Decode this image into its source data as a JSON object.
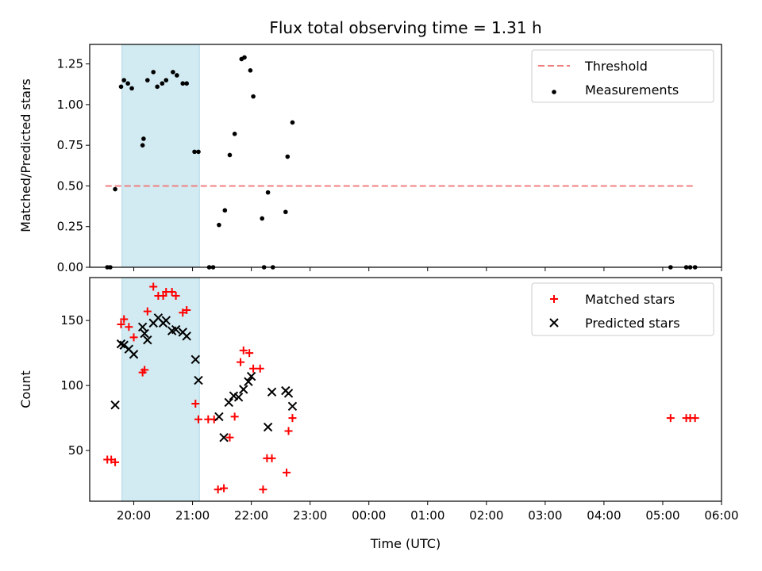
{
  "chart_data": [
    {
      "type": "scatter",
      "title": "Flux total observing time = 1.31 h",
      "ylabel": "Matched/Predicted stars",
      "xlabel": "",
      "xlim": [
        "19:15",
        "06:00"
      ],
      "ylim": [
        0,
        1.37
      ],
      "yticks": [
        "0.00",
        "0.25",
        "0.50",
        "0.75",
        "1.00",
        "1.25"
      ],
      "shaded_region": {
        "x_start": "19:48",
        "x_end": "21:07",
        "color": "#add8e6"
      },
      "legend_position": "upper right",
      "threshold": {
        "name": "Threshold",
        "y": 0.5,
        "x_start": "19:31",
        "x_end": "05:33",
        "color": "#f08080",
        "style": "dashed"
      },
      "series": [
        {
          "name": "Measurements",
          "color": "#000000",
          "marker": "dot",
          "points": [
            [
              "19:33",
              0.0
            ],
            [
              "19:36",
              0.0
            ],
            [
              "19:41",
              0.48
            ],
            [
              "19:47",
              1.11
            ],
            [
              "19:50",
              1.15
            ],
            [
              "19:54",
              1.13
            ],
            [
              "19:58",
              1.1
            ],
            [
              "20:09",
              0.75
            ],
            [
              "20:10",
              0.79
            ],
            [
              "20:14",
              1.15
            ],
            [
              "20:20",
              1.2
            ],
            [
              "20:24",
              1.11
            ],
            [
              "20:29",
              1.13
            ],
            [
              "20:33",
              1.15
            ],
            [
              "20:40",
              1.2
            ],
            [
              "20:44",
              1.18
            ],
            [
              "20:50",
              1.13
            ],
            [
              "20:54",
              1.13
            ],
            [
              "21:02",
              0.71
            ],
            [
              "21:06",
              0.71
            ],
            [
              "21:17",
              0.0
            ],
            [
              "21:21",
              0.0
            ],
            [
              "21:27",
              0.26
            ],
            [
              "21:33",
              0.35
            ],
            [
              "21:38",
              0.69
            ],
            [
              "21:43",
              0.82
            ],
            [
              "21:50",
              1.28
            ],
            [
              "21:53",
              1.29
            ],
            [
              "21:59",
              1.21
            ],
            [
              "22:02",
              1.05
            ],
            [
              "22:11",
              0.3
            ],
            [
              "22:13",
              0.0
            ],
            [
              "22:17",
              0.46
            ],
            [
              "22:22",
              0.0
            ],
            [
              "22:35",
              0.34
            ],
            [
              "22:37",
              0.68
            ],
            [
              "22:42",
              0.89
            ],
            [
              "05:08",
              0.0
            ],
            [
              "05:24",
              0.0
            ],
            [
              "05:28",
              0.0
            ],
            [
              "05:33",
              0.0
            ]
          ]
        }
      ]
    },
    {
      "type": "scatter",
      "title": "",
      "ylabel": "Count",
      "xlabel": "Time (UTC)",
      "xlim": [
        "19:15",
        "06:00"
      ],
      "ylim": [
        11,
        183
      ],
      "yticks": [
        "50",
        "100",
        "150"
      ],
      "xticks": [
        "20:00",
        "21:00",
        "22:00",
        "23:00",
        "00:00",
        "01:00",
        "02:00",
        "03:00",
        "04:00",
        "05:00",
        "06:00"
      ],
      "shaded_region": {
        "x_start": "19:48",
        "x_end": "21:07",
        "color": "#add8e6"
      },
      "legend_position": "upper right",
      "series": [
        {
          "name": "Matched stars",
          "color": "#ff0000",
          "marker": "plus",
          "points": [
            [
              "19:33",
              43
            ],
            [
              "19:37",
              43
            ],
            [
              "19:41",
              41
            ],
            [
              "19:47",
              147
            ],
            [
              "19:50",
              151
            ],
            [
              "19:55",
              145
            ],
            [
              "20:00",
              137
            ],
            [
              "20:09",
              110
            ],
            [
              "20:11",
              112
            ],
            [
              "20:14",
              157
            ],
            [
              "20:20",
              176
            ],
            [
              "20:25",
              169
            ],
            [
              "20:30",
              169
            ],
            [
              "20:33",
              172
            ],
            [
              "20:39",
              172
            ],
            [
              "20:43",
              169
            ],
            [
              "20:50",
              156
            ],
            [
              "20:54",
              158
            ],
            [
              "21:03",
              86
            ],
            [
              "21:06",
              74
            ],
            [
              "21:16",
              74
            ],
            [
              "21:22",
              74
            ],
            [
              "21:26",
              20
            ],
            [
              "21:32",
              21
            ],
            [
              "21:38",
              60
            ],
            [
              "21:43",
              76
            ],
            [
              "21:49",
              118
            ],
            [
              "21:52",
              127
            ],
            [
              "21:58",
              125
            ],
            [
              "22:02",
              113
            ],
            [
              "22:09",
              113
            ],
            [
              "22:12",
              20
            ],
            [
              "22:16",
              44
            ],
            [
              "22:21",
              44
            ],
            [
              "22:36",
              33
            ],
            [
              "22:38",
              65
            ],
            [
              "22:42",
              75
            ],
            [
              "05:08",
              75
            ],
            [
              "05:24",
              75
            ],
            [
              "05:28",
              75
            ],
            [
              "05:33",
              75
            ]
          ]
        },
        {
          "name": "Predicted stars",
          "color": "#000000",
          "marker": "x",
          "points": [
            [
              "19:41",
              85
            ],
            [
              "19:47",
              132
            ],
            [
              "19:50",
              131
            ],
            [
              "19:55",
              128
            ],
            [
              "20:00",
              124
            ],
            [
              "20:09",
              145
            ],
            [
              "20:11",
              140
            ],
            [
              "20:14",
              135
            ],
            [
              "20:20",
              148
            ],
            [
              "20:25",
              152
            ],
            [
              "20:30",
              148
            ],
            [
              "20:33",
              150
            ],
            [
              "20:39",
              142
            ],
            [
              "20:43",
              143
            ],
            [
              "20:50",
              141
            ],
            [
              "20:54",
              138
            ],
            [
              "21:03",
              120
            ],
            [
              "21:06",
              104
            ],
            [
              "21:27",
              76
            ],
            [
              "21:32",
              60
            ],
            [
              "21:37",
              87
            ],
            [
              "21:42",
              92
            ],
            [
              "21:47",
              91
            ],
            [
              "21:52",
              97
            ],
            [
              "21:57",
              103
            ],
            [
              "22:00",
              107
            ],
            [
              "22:17",
              68
            ],
            [
              "22:21",
              95
            ],
            [
              "22:35",
              96
            ],
            [
              "22:38",
              94
            ],
            [
              "22:42",
              84
            ]
          ]
        }
      ]
    }
  ]
}
